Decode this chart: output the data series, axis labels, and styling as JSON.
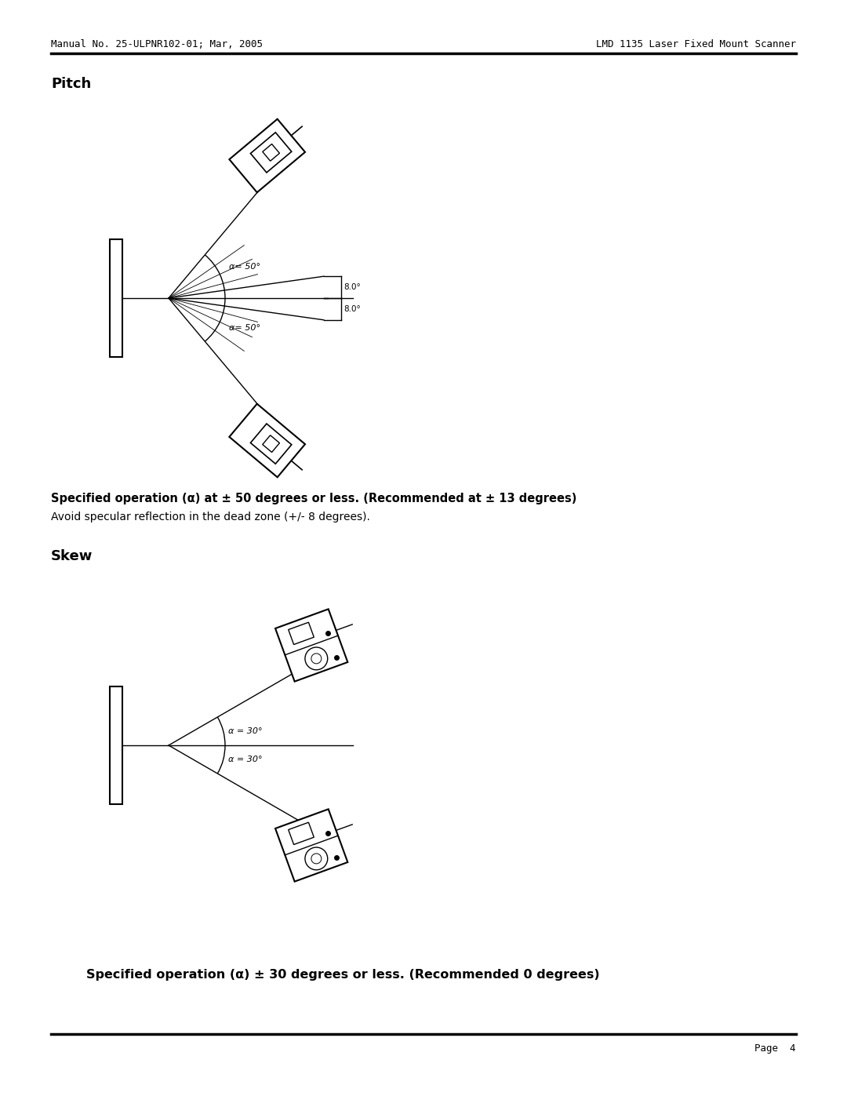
{
  "header_left": "Manual No. 25-ULPNR102-01; Mar, 2005",
  "header_right": "LMD 1135 Laser Fixed Mount Scanner",
  "footer_right": "Page  4",
  "pitch_label": "Pitch",
  "skew_label": "Skew",
  "pitch_spec_bold": "Specified operation (α) at ± 50 degrees or less. (Recommended at ± 13 degrees)",
  "pitch_spec_normal": "Avoid specular reflection in the dead zone (+/- 8 degrees).",
  "skew_spec_bold": "Specified operation (α) ± 30 degrees or less. (Recommended 0 degrees)",
  "bg_color": "#ffffff",
  "lc": "#000000"
}
